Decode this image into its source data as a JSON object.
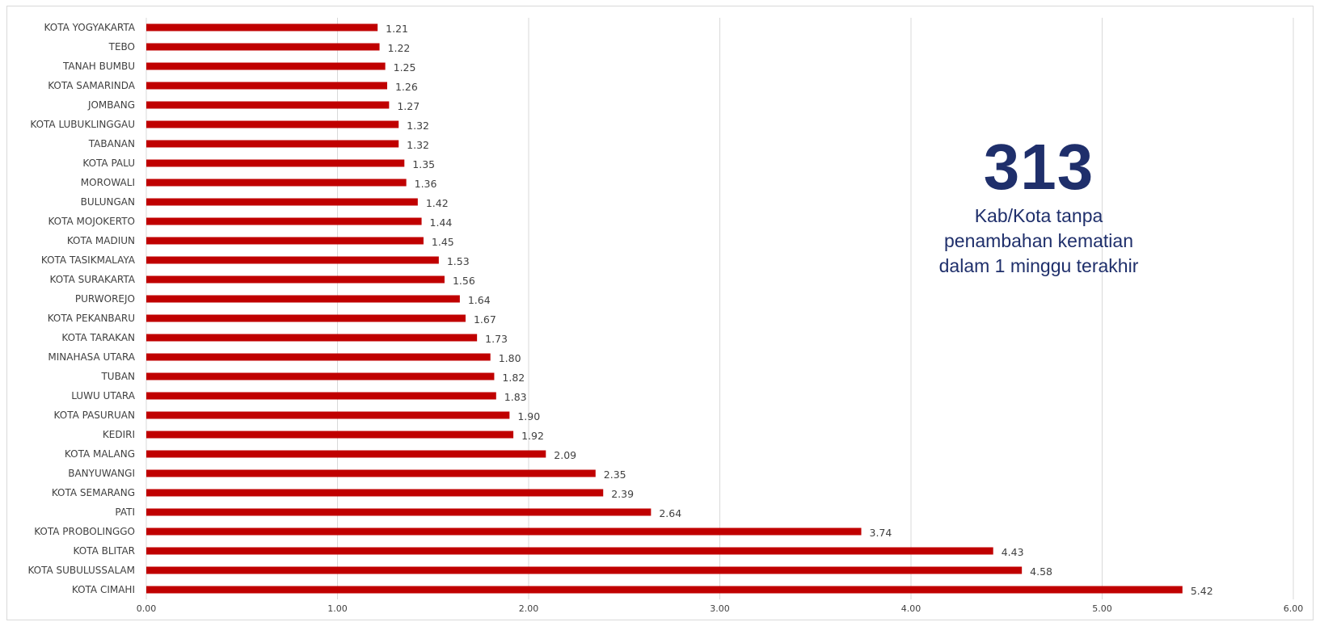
{
  "chart_data": {
    "type": "bar",
    "orientation": "horizontal",
    "categories": [
      "KOTA YOGYAKARTA",
      "TEBO",
      "TANAH BUMBU",
      "KOTA SAMARINDA",
      "JOMBANG",
      "KOTA LUBUKLINGGAU",
      "TABANAN",
      "KOTA PALU",
      "MOROWALI",
      "BULUNGAN",
      "KOTA MOJOKERTO",
      "KOTA MADIUN",
      "KOTA TASIKMALAYA",
      "KOTA SURAKARTA",
      "PURWOREJO",
      "KOTA PEKANBARU",
      "KOTA TARAKAN",
      "MINAHASA UTARA",
      "TUBAN",
      "LUWU UTARA",
      "KOTA PASURUAN",
      "KEDIRI",
      "KOTA MALANG",
      "BANYUWANGI",
      "KOTA SEMARANG",
      "PATI",
      "KOTA PROBOLINGGO",
      "KOTA BLITAR",
      "KOTA SUBULUSSALAM",
      "KOTA CIMAHI"
    ],
    "values": [
      1.21,
      1.22,
      1.25,
      1.26,
      1.27,
      1.32,
      1.32,
      1.35,
      1.36,
      1.42,
      1.44,
      1.45,
      1.53,
      1.56,
      1.64,
      1.67,
      1.73,
      1.8,
      1.82,
      1.83,
      1.9,
      1.92,
      2.09,
      2.35,
      2.39,
      2.64,
      3.74,
      4.43,
      4.58,
      5.42
    ],
    "value_labels": [
      "1.21",
      "1.22",
      "1.25",
      "1.26",
      "1.27",
      "1.32",
      "1.32",
      "1.35",
      "1.36",
      "1.42",
      "1.44",
      "1.45",
      "1.53",
      "1.56",
      "1.64",
      "1.67",
      "1.73",
      "1.80",
      "1.82",
      "1.83",
      "1.90",
      "1.92",
      "2.09",
      "2.35",
      "2.39",
      "2.64",
      "3.74",
      "4.43",
      "4.58",
      "5.42"
    ],
    "xlim": [
      0,
      6
    ],
    "x_ticks": [
      0,
      1,
      2,
      3,
      4,
      5,
      6
    ],
    "x_tick_labels": [
      "0.00",
      "1.00",
      "2.00",
      "3.00",
      "4.00",
      "5.00",
      "6.00"
    ],
    "grid": "vertical",
    "bar_color": "#c00000",
    "title": "",
    "xlabel": "",
    "ylabel": ""
  },
  "callout": {
    "number": "313",
    "lines": [
      "Kab/Kota tanpa",
      "penambahan kematian",
      "dalam 1 minggu terakhir"
    ],
    "color": "#1f2f6b"
  }
}
